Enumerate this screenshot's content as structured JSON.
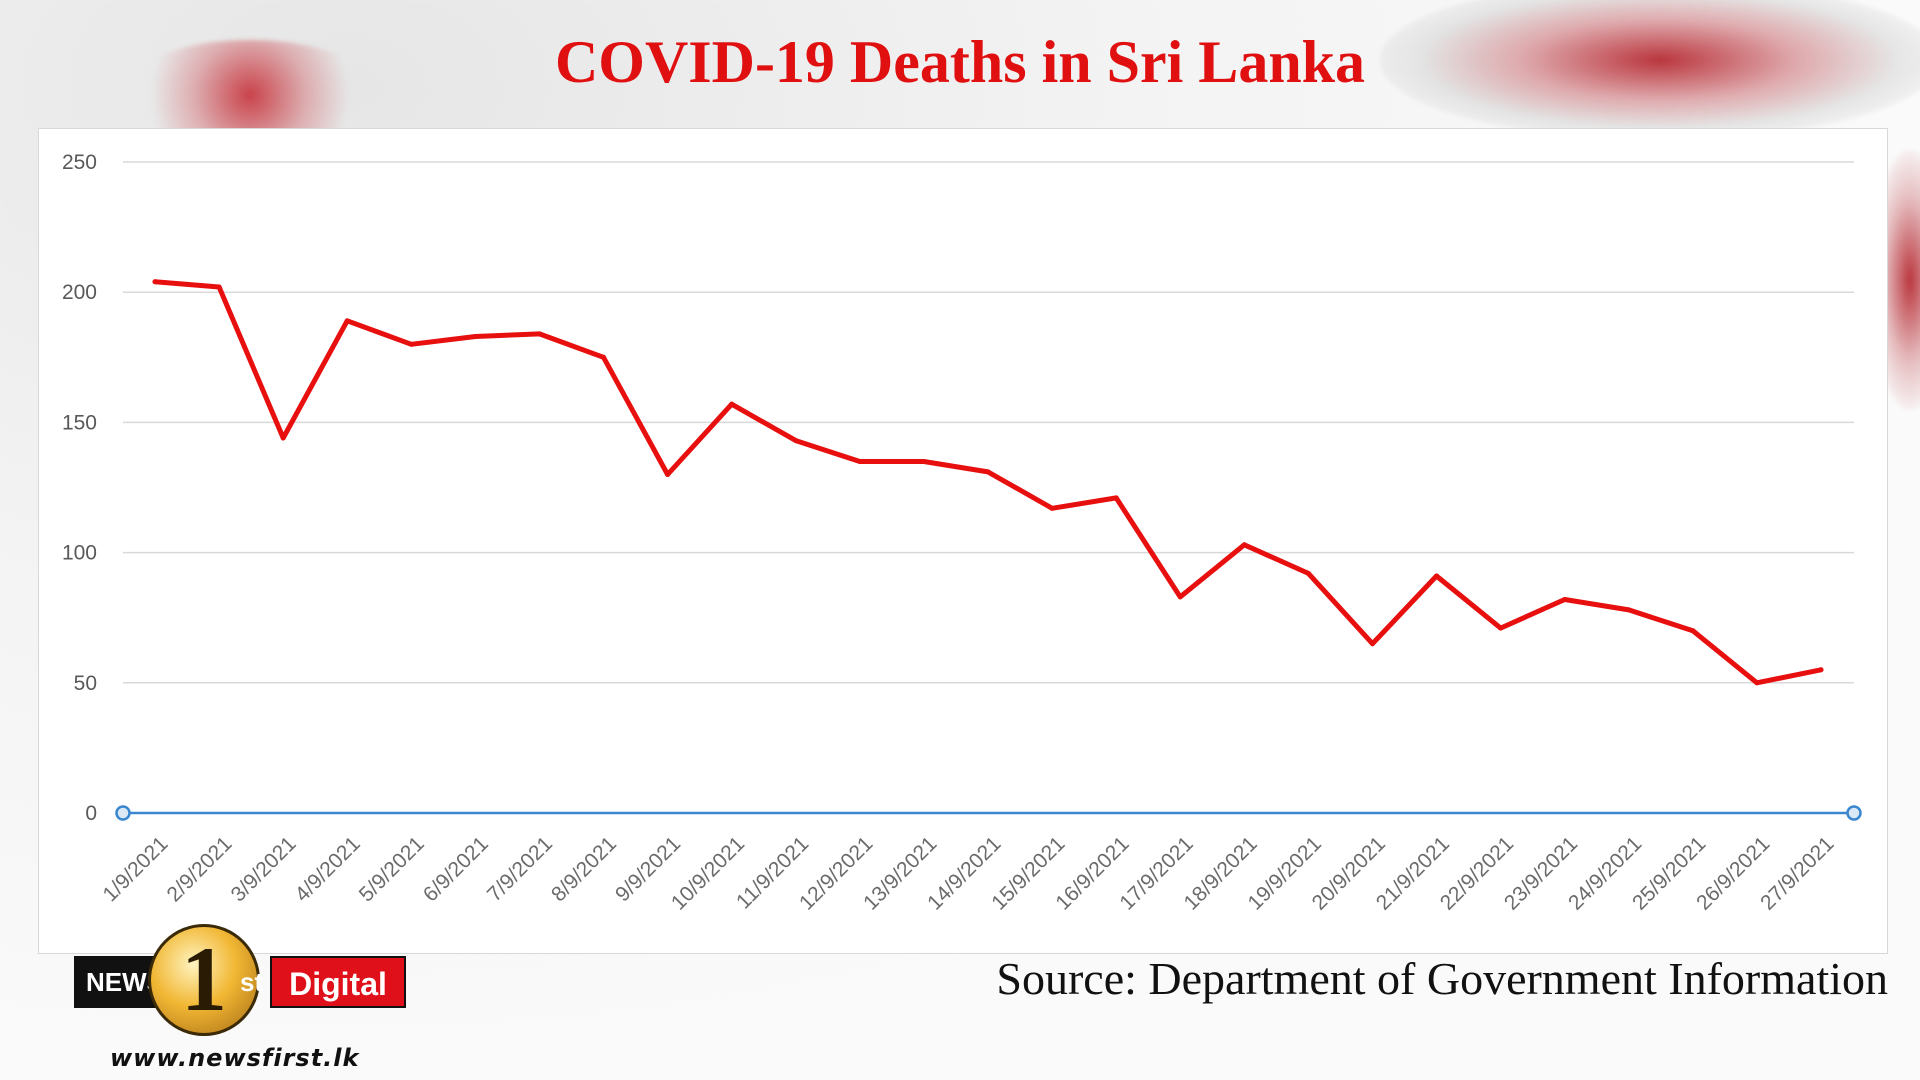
{
  "page": {
    "title": "COVID-19 Deaths in Sri Lanka",
    "source": "Source: Department of Government Information",
    "logo_text_left": "NEWS",
    "logo_digit": "1",
    "logo_suffix": "st",
    "logo_text_right": "Digital",
    "website": "www.newsfirst.lk",
    "colors": {
      "title": "#e01010",
      "line": "#e80f0f",
      "baseline": "#3a86cf",
      "grid": "#d9d9d9"
    }
  },
  "chart_data": {
    "type": "line",
    "title": "COVID-19 Deaths in Sri Lanka",
    "xlabel": "",
    "ylabel": "",
    "ylim": [
      0,
      250
    ],
    "yticks": [
      0,
      50,
      100,
      150,
      200,
      250
    ],
    "grid": true,
    "categories": [
      "1/9/2021",
      "2/9/2021",
      "3/9/2021",
      "4/9/2021",
      "5/9/2021",
      "6/9/2021",
      "7/9/2021",
      "8/9/2021",
      "9/9/2021",
      "10/9/2021",
      "11/9/2021",
      "12/9/2021",
      "13/9/2021",
      "14/9/2021",
      "15/9/2021",
      "16/9/2021",
      "17/9/2021",
      "18/9/2021",
      "19/9/2021",
      "20/9/2021",
      "21/9/2021",
      "22/9/2021",
      "23/9/2021",
      "24/9/2021",
      "25/9/2021",
      "26/9/2021",
      "27/9/2021"
    ],
    "series": [
      {
        "values": [
          204,
          202,
          144,
          189,
          180,
          183,
          184,
          175,
          130,
          157,
          143,
          135,
          135,
          131,
          117,
          121,
          83,
          103,
          92,
          65,
          91,
          71,
          82,
          78,
          70,
          50,
          55
        ]
      }
    ],
    "baseline": {
      "value": 0
    }
  }
}
